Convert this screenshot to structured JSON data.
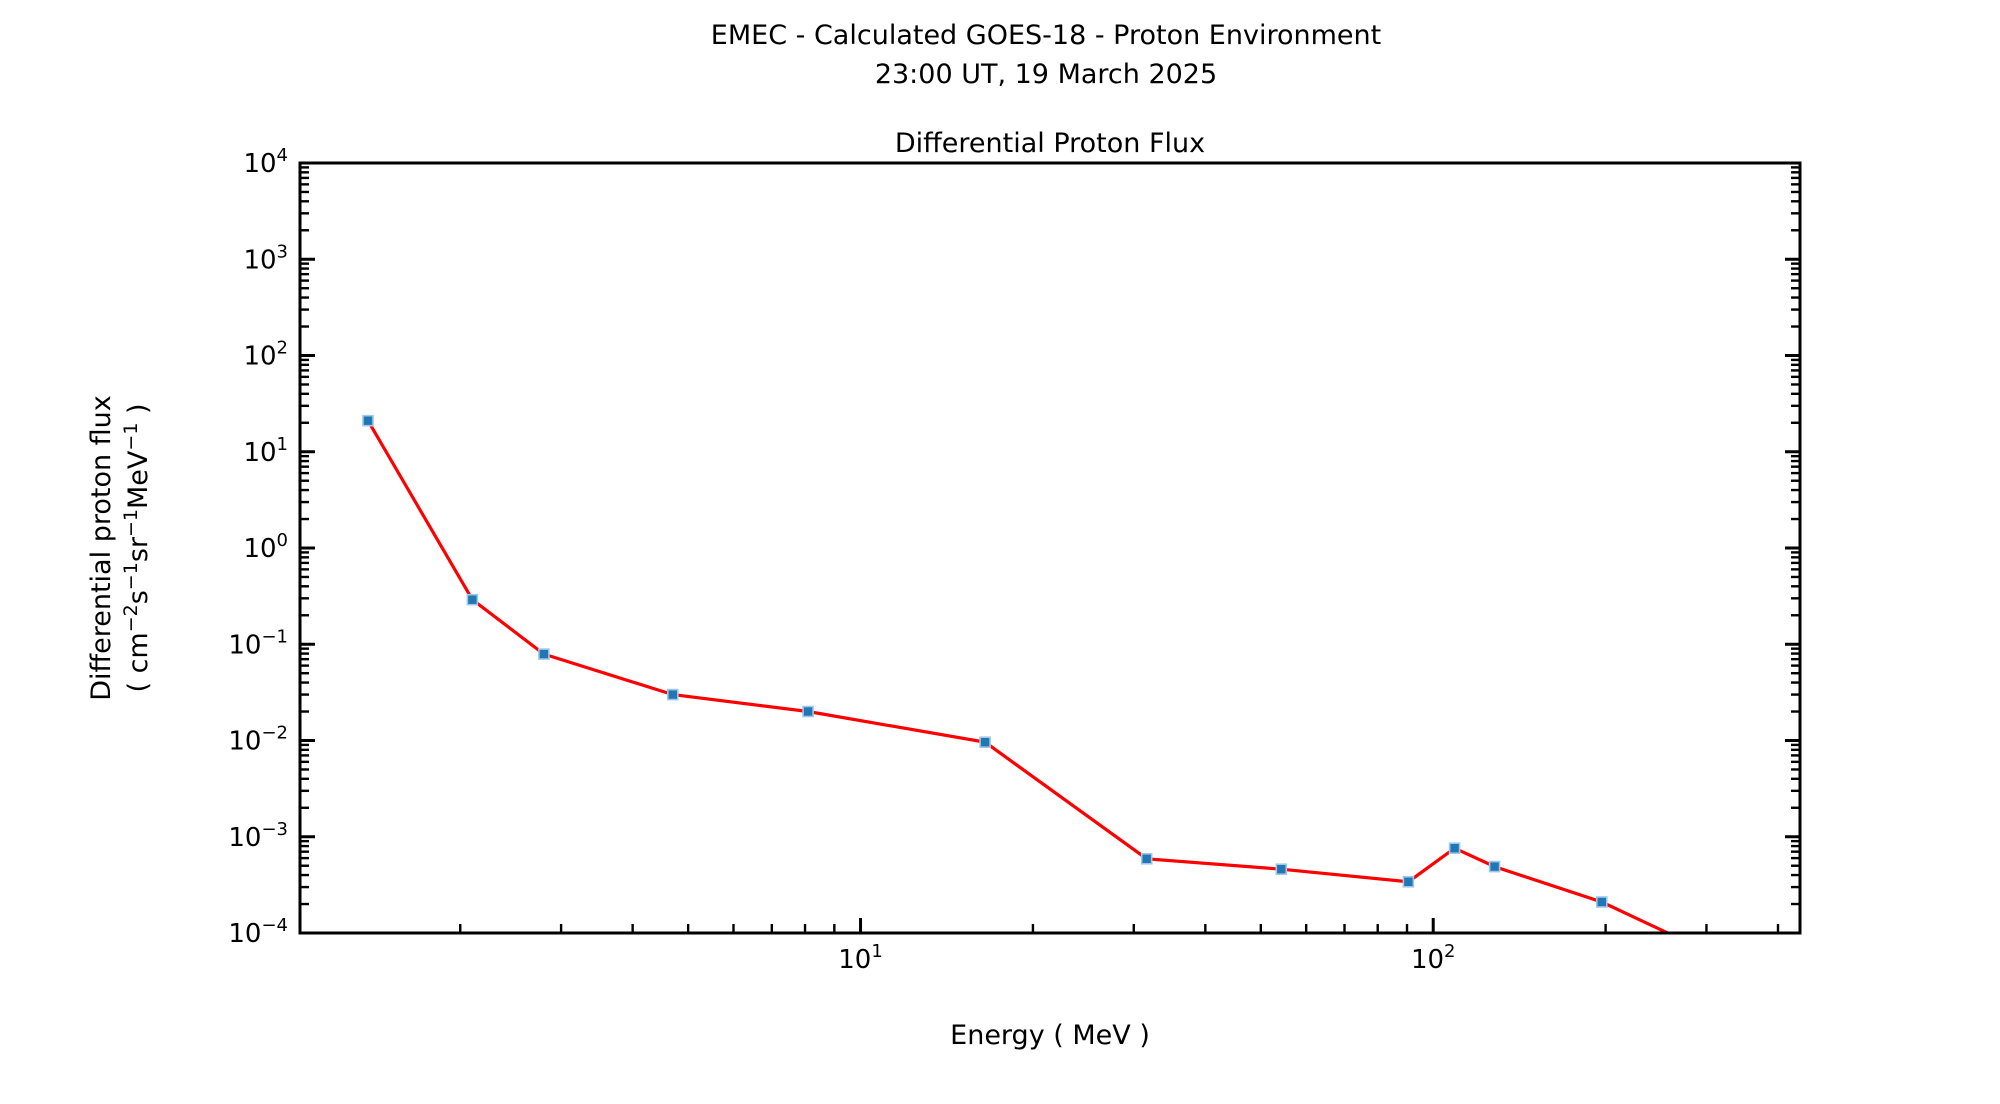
{
  "header": {
    "title_line1": "EMEC - Calculated GOES-18 - Proton Environment",
    "title_line2": "23:00 UT, 19 March 2025"
  },
  "chart_data": {
    "type": "line",
    "title": "Differential Proton Flux",
    "xlabel": "Energy ( MeV )",
    "ylabel_line1": "Differential proton flux",
    "ylabel_unit_segments": [
      {
        "t": "( cm"
      },
      {
        "t": "-2",
        "sup": true
      },
      {
        "t": "s"
      },
      {
        "t": "-1",
        "sup": true
      },
      {
        "t": "sr"
      },
      {
        "t": "-1",
        "sup": true
      },
      {
        "t": "MeV"
      },
      {
        "t": "-1",
        "sup": true
      },
      {
        "t": " )"
      }
    ],
    "xscale": "log",
    "yscale": "log",
    "grid": false,
    "legend": false,
    "xlim": [
      1.05,
      437
    ],
    "ylim": [
      0.0001,
      10000
    ],
    "x_tick_exponents": [
      1,
      2
    ],
    "y_tick_exponents": [
      4,
      3,
      2,
      1,
      0,
      -1,
      -2,
      -3,
      -4
    ],
    "series": [
      {
        "name": "differential-proton-flux",
        "x": [
          1.38,
          2.1,
          2.8,
          4.7,
          8.1,
          16.5,
          31.6,
          54.3,
          90.5,
          109,
          128,
          197,
          278
        ],
        "y": [
          21,
          0.29,
          0.079,
          0.03,
          0.02,
          0.0096,
          0.00059,
          0.00046,
          0.00034,
          0.00076,
          0.00049,
          0.00021,
          8e-05
        ]
      }
    ],
    "colors": {
      "line": "#ff0000",
      "marker_fill": "#2077b4",
      "marker_edge": "#9fc8e8",
      "axis": "#000000"
    }
  }
}
